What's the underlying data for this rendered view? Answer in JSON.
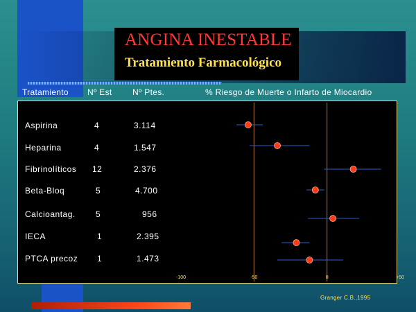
{
  "slide": {
    "title": "ANGINA INESTABLE",
    "subtitle": "Tratamiento Farmacológico",
    "citation": "Granger  C.B.,1995",
    "colors": {
      "background": "#1f7d80",
      "title": "#ff3838",
      "subtitle": "#ffe14a",
      "panel_border": "#e8e08a",
      "marker": "#ff3a1a",
      "ci_line": "#2f5fd0",
      "ref_line": "#b5713d"
    }
  },
  "table": {
    "headers": {
      "treatment": "Tratamiento",
      "n_studies": "Nº Est",
      "n_patients": "Nº Ptes.",
      "risk": "% Riesgo de Muerte o Infarto de Miocardio"
    },
    "rows": [
      {
        "treatment": "Aspirina",
        "n_studies": "4",
        "n_patients": "3.114"
      },
      {
        "treatment": "Heparina",
        "n_studies": "4",
        "n_patients": "1.547"
      },
      {
        "treatment": "Fibrinolíticos",
        "n_studies": "12",
        "n_patients": "2.376"
      },
      {
        "treatment": "Beta-Bloq",
        "n_studies": "5",
        "n_patients": "4.700"
      },
      {
        "treatment": "Calcioantag.",
        "n_studies": "5",
        "n_patients": "956"
      },
      {
        "treatment": "IECA",
        "n_studies": "1",
        "n_patients": "2.395"
      },
      {
        "treatment": "PTCA precoz",
        "n_studies": "1",
        "n_patients": "1.473"
      }
    ]
  },
  "chart_data": {
    "type": "scatter",
    "title": "% Riesgo de Muerte o Infarto de Miocardio",
    "xlim": [
      -100,
      50
    ],
    "x_ticks": [
      "-100",
      "-50",
      "0",
      "+50"
    ],
    "reference_lines": [
      -50,
      0
    ],
    "categories": [
      "Aspirina",
      "Heparina",
      "Fibrinolíticos",
      "Beta-Bloq",
      "Calcioantag.",
      "IECA",
      "PTCA precoz"
    ],
    "estimates": [
      -54,
      -34,
      18,
      -8,
      4,
      -21,
      -12
    ],
    "ci_low": [
      -62,
      -53,
      -2,
      -14,
      -13,
      -31,
      -34
    ],
    "ci_high": [
      -44,
      -12,
      37,
      -2,
      22,
      -12,
      11
    ],
    "grid": false
  }
}
